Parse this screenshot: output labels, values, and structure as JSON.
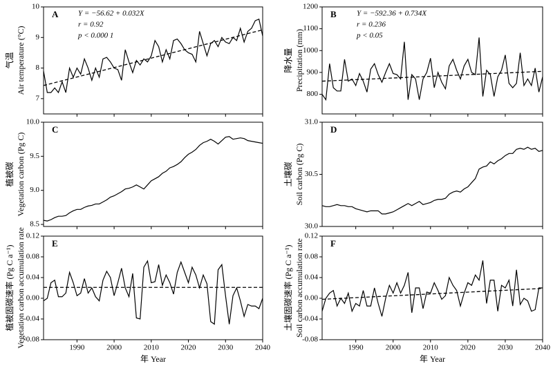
{
  "chart_data": [
    {
      "type": "line",
      "label": "A",
      "ylabel_cn": "气温",
      "ylabel": "Air temperature (°C)",
      "annotations": [
        "Y = −56.62 + 0.032X",
        "r = 0.92",
        "p < 0.000 1"
      ],
      "x": [
        1981,
        1982,
        1983,
        1984,
        1985,
        1986,
        1987,
        1988,
        1989,
        1990,
        1991,
        1992,
        1993,
        1994,
        1995,
        1996,
        1997,
        1998,
        1999,
        2000,
        2001,
        2002,
        2003,
        2004,
        2005,
        2006,
        2007,
        2008,
        2009,
        2010,
        2011,
        2012,
        2013,
        2014,
        2015,
        2016,
        2017,
        2018,
        2019,
        2020,
        2021,
        2022,
        2023,
        2024,
        2025,
        2026,
        2027,
        2028,
        2029,
        2030,
        2031,
        2032,
        2033,
        2034,
        2035,
        2036,
        2037,
        2038,
        2039,
        2040
      ],
      "values": [
        7.9,
        7.2,
        7.2,
        7.35,
        7.2,
        7.55,
        7.2,
        8.0,
        7.7,
        8.0,
        7.8,
        8.3,
        8.0,
        7.6,
        8.0,
        7.7,
        8.3,
        8.35,
        8.2,
        8.0,
        7.95,
        7.6,
        8.6,
        8.2,
        7.85,
        8.25,
        8.1,
        8.3,
        8.2,
        8.4,
        8.9,
        8.7,
        8.2,
        8.6,
        8.3,
        8.9,
        8.95,
        8.8,
        8.6,
        8.5,
        8.45,
        8.2,
        9.2,
        8.8,
        8.4,
        8.8,
        8.9,
        8.7,
        9.0,
        8.85,
        8.8,
        9.0,
        8.9,
        9.3,
        8.85,
        9.2,
        9.3,
        9.55,
        9.6,
        9.05
      ],
      "trend": {
        "x": [
          1981,
          2040
        ],
        "y": [
          7.43,
          9.25
        ]
      },
      "xlim": [
        1981,
        2040
      ],
      "xticks": [
        1990,
        2000,
        2010,
        2020,
        2030,
        2040
      ],
      "ylim": [
        6.5,
        10
      ],
      "yticks": [
        7,
        8,
        9,
        10
      ],
      "color": "#000000"
    },
    {
      "type": "line",
      "label": "B",
      "ylabel_cn": "降水量",
      "ylabel": "Precipitation (mm)",
      "annotations": [
        "Y = −592.36 + 0.734X",
        "r = 0.236",
        "p < 0.05"
      ],
      "x": [
        1981,
        1982,
        1983,
        1984,
        1985,
        1986,
        1987,
        1988,
        1989,
        1990,
        1991,
        1992,
        1993,
        1994,
        1995,
        1996,
        1997,
        1998,
        1999,
        2000,
        2001,
        2002,
        2003,
        2004,
        2005,
        2006,
        2007,
        2008,
        2009,
        2010,
        2011,
        2012,
        2013,
        2014,
        2015,
        2016,
        2017,
        2018,
        2019,
        2020,
        2021,
        2022,
        2023,
        2024,
        2025,
        2026,
        2027,
        2028,
        2029,
        2030,
        2031,
        2032,
        2033,
        2034,
        2035,
        2036,
        2037,
        2038,
        2039,
        2040
      ],
      "values": [
        800,
        775,
        940,
        830,
        815,
        815,
        960,
        860,
        870,
        840,
        895,
        860,
        810,
        915,
        940,
        890,
        855,
        900,
        940,
        895,
        890,
        870,
        1040,
        775,
        890,
        870,
        775,
        870,
        900,
        965,
        830,
        900,
        855,
        825,
        930,
        960,
        910,
        870,
        930,
        960,
        900,
        890,
        1060,
        790,
        910,
        890,
        790,
        880,
        910,
        980,
        850,
        830,
        850,
        990,
        840,
        870,
        840,
        920,
        810,
        880
      ],
      "trend": {
        "x": [
          1981,
          2040
        ],
        "y": [
          860,
          905
        ]
      },
      "xlim": [
        1981,
        2040
      ],
      "xticks": [
        1990,
        2000,
        2010,
        2020,
        2030,
        2040
      ],
      "ylim": [
        710,
        1200
      ],
      "yticks": [
        800,
        900,
        1000,
        1100,
        1200
      ],
      "color": "#000000"
    },
    {
      "type": "line",
      "label": "C",
      "ylabel_cn": "植被碳",
      "ylabel": "Vegetation carbon (Pg C)",
      "x": [
        1981,
        1982,
        1983,
        1984,
        1985,
        1986,
        1987,
        1988,
        1989,
        1990,
        1991,
        1992,
        1993,
        1994,
        1995,
        1996,
        1997,
        1998,
        1999,
        2000,
        2001,
        2002,
        2003,
        2004,
        2005,
        2006,
        2007,
        2008,
        2009,
        2010,
        2011,
        2012,
        2013,
        2014,
        2015,
        2016,
        2017,
        2018,
        2019,
        2020,
        2021,
        2022,
        2023,
        2024,
        2025,
        2026,
        2027,
        2028,
        2029,
        2030,
        2031,
        2032,
        2033,
        2034,
        2035,
        2036,
        2037,
        2038,
        2039,
        2040
      ],
      "values": [
        8.56,
        8.55,
        8.57,
        8.6,
        8.62,
        8.62,
        8.63,
        8.67,
        8.7,
        8.72,
        8.72,
        8.75,
        8.77,
        8.78,
        8.8,
        8.8,
        8.83,
        8.86,
        8.9,
        8.92,
        8.95,
        8.98,
        9.02,
        9.03,
        9.05,
        9.08,
        9.05,
        9.02,
        9.08,
        9.14,
        9.17,
        9.2,
        9.25,
        9.28,
        9.33,
        9.35,
        9.38,
        9.42,
        9.48,
        9.53,
        9.56,
        9.6,
        9.66,
        9.7,
        9.72,
        9.75,
        9.72,
        9.68,
        9.73,
        9.78,
        9.79,
        9.75,
        9.76,
        9.77,
        9.76,
        9.73,
        9.72,
        9.71,
        9.7,
        9.69
      ],
      "xlim": [
        1981,
        2040
      ],
      "xticks": [
        1990,
        2000,
        2010,
        2020,
        2030,
        2040
      ],
      "ylim": [
        8.47,
        10.0
      ],
      "yticks": [
        8.5,
        {
          "value": 9,
          "label": "9.0"
        },
        9.5,
        {
          "value": 10,
          "label": "10.0"
        }
      ],
      "color": "#000000"
    },
    {
      "type": "line",
      "label": "D",
      "ylabel_cn": "土壤碳",
      "ylabel": "Soil carbon (Pg C)",
      "x": [
        1981,
        1982,
        1983,
        1984,
        1985,
        1986,
        1987,
        1988,
        1989,
        1990,
        1991,
        1992,
        1993,
        1994,
        1995,
        1996,
        1997,
        1998,
        1999,
        2000,
        2001,
        2002,
        2003,
        2004,
        2005,
        2006,
        2007,
        2008,
        2009,
        2010,
        2011,
        2012,
        2013,
        2014,
        2015,
        2016,
        2017,
        2018,
        2019,
        2020,
        2021,
        2022,
        2023,
        2024,
        2025,
        2026,
        2027,
        2028,
        2029,
        2030,
        2031,
        2032,
        2033,
        2034,
        2035,
        2036,
        2037,
        2038,
        2039,
        2040
      ],
      "values": [
        30.2,
        30.19,
        30.19,
        30.2,
        30.21,
        30.2,
        30.2,
        30.19,
        30.19,
        30.17,
        30.16,
        30.15,
        30.14,
        30.15,
        30.15,
        30.15,
        30.12,
        30.12,
        30.13,
        30.14,
        30.16,
        30.18,
        30.2,
        30.22,
        30.2,
        30.22,
        30.24,
        30.21,
        30.22,
        30.23,
        30.25,
        30.26,
        30.26,
        30.27,
        30.31,
        30.33,
        30.34,
        30.33,
        30.36,
        30.38,
        30.42,
        30.46,
        30.55,
        30.57,
        30.58,
        30.62,
        30.6,
        30.63,
        30.65,
        30.68,
        30.7,
        30.7,
        30.74,
        30.75,
        30.74,
        30.76,
        30.74,
        30.75,
        30.72,
        30.73
      ],
      "xlim": [
        1981,
        2040
      ],
      "xticks": [
        1990,
        2000,
        2010,
        2020,
        2030,
        2040
      ],
      "ylim": [
        30,
        31
      ],
      "yticks": [
        {
          "value": 30,
          "label": "30.0"
        },
        30.5,
        {
          "value": 31,
          "label": "31.0"
        }
      ],
      "color": "#000000"
    },
    {
      "type": "line",
      "label": "E",
      "ylabel_cn": "植被固碳速率 (Pg C a⁻¹)",
      "ylabel": "Vegetation carbon accumulation rate",
      "xlabel": "年 Year",
      "x": [
        1981,
        1982,
        1983,
        1984,
        1985,
        1986,
        1987,
        1988,
        1989,
        1990,
        1991,
        1992,
        1993,
        1994,
        1995,
        1996,
        1997,
        1998,
        1999,
        2000,
        2001,
        2002,
        2003,
        2004,
        2005,
        2006,
        2007,
        2008,
        2009,
        2010,
        2011,
        2012,
        2013,
        2014,
        2015,
        2016,
        2017,
        2018,
        2019,
        2020,
        2021,
        2022,
        2023,
        2024,
        2025,
        2026,
        2027,
        2028,
        2029,
        2030,
        2031,
        2032,
        2033,
        2034,
        2035,
        2036,
        2037,
        2038,
        2039,
        2040
      ],
      "values": [
        -0.005,
        0,
        0.03,
        0.035,
        0.003,
        0.003,
        0.01,
        0.05,
        0.03,
        0.005,
        0.01,
        0.038,
        0.01,
        0.02,
        0.003,
        -0.005,
        0.035,
        0.052,
        0.04,
        0.005,
        0.03,
        0.058,
        0.02,
        0.003,
        0.048,
        -0.038,
        -0.04,
        0.06,
        0.072,
        0.03,
        0.032,
        0.065,
        0.025,
        0.045,
        0.03,
        0.008,
        0.05,
        0.07,
        0.05,
        0.03,
        0.06,
        0.045,
        0.02,
        0.045,
        0.028,
        -0.045,
        -0.05,
        0.055,
        0.065,
        0.005,
        -0.05,
        0.005,
        0.02,
        -0.005,
        -0.035,
        -0.012,
        -0.015,
        -0.015,
        -0.02,
        0.0
      ],
      "trend": {
        "x": [
          1981,
          2040
        ],
        "y": [
          0.021,
          0.021
        ]
      },
      "xlim": [
        1981,
        2040
      ],
      "xticks": [
        1990,
        2000,
        2010,
        2020,
        2030,
        2040
      ],
      "ylim": [
        -0.08,
        0.12
      ],
      "yticks": [
        -0.08,
        -0.04,
        {
          "value": 0,
          "label": "0.00"
        },
        0.04,
        0.08,
        0.12
      ],
      "color": "#000000"
    },
    {
      "type": "line",
      "label": "F",
      "ylabel_cn": "土壤固碳速率 (Pg C a⁻¹)",
      "ylabel": "Soil carbon accumulation rate",
      "xlabel": "年 Year",
      "x": [
        1981,
        1982,
        1983,
        1984,
        1985,
        1986,
        1987,
        1988,
        1989,
        1990,
        1991,
        1992,
        1993,
        1994,
        1995,
        1996,
        1997,
        1998,
        1999,
        2000,
        2001,
        2002,
        2003,
        2004,
        2005,
        2006,
        2007,
        2008,
        2009,
        2010,
        2011,
        2012,
        2013,
        2014,
        2015,
        2016,
        2017,
        2018,
        2019,
        2020,
        2021,
        2022,
        2023,
        2024,
        2025,
        2026,
        2027,
        2028,
        2029,
        2030,
        2031,
        2032,
        2033,
        2034,
        2035,
        2036,
        2037,
        2038,
        2039,
        2040
      ],
      "values": [
        -0.025,
        0,
        0.01,
        0.015,
        -0.015,
        0,
        -0.01,
        0.01,
        -0.025,
        -0.01,
        -0.015,
        0.015,
        -0.015,
        -0.015,
        0.02,
        -0.01,
        -0.035,
        0.0,
        0.025,
        0.01,
        0.03,
        0.01,
        0.025,
        0.05,
        -0.028,
        0.02,
        0.02,
        -0.02,
        0.012,
        0.01,
        0.03,
        0.015,
        -0.002,
        0.005,
        0.04,
        0.025,
        0.015,
        -0.015,
        0.01,
        0.03,
        0.025,
        0.045,
        0.035,
        0.073,
        -0.01,
        0.035,
        0.035,
        -0.025,
        0.025,
        0.02,
        0.035,
        -0.015,
        0.055,
        -0.012,
        0.0,
        -0.005,
        -0.025,
        -0.022,
        0.02,
        0.02
      ],
      "trend": {
        "x": [
          1981,
          2040
        ],
        "y": [
          -0.002,
          0.019
        ]
      },
      "xlim": [
        1981,
        2040
      ],
      "xticks": [
        1990,
        2000,
        2010,
        2020,
        2030,
        2040
      ],
      "ylim": [
        -0.08,
        0.12
      ],
      "yticks": [
        -0.08,
        -0.04,
        {
          "value": 0,
          "label": "0.00"
        },
        0.04,
        0.08,
        0.12
      ],
      "color": "#000000"
    }
  ]
}
